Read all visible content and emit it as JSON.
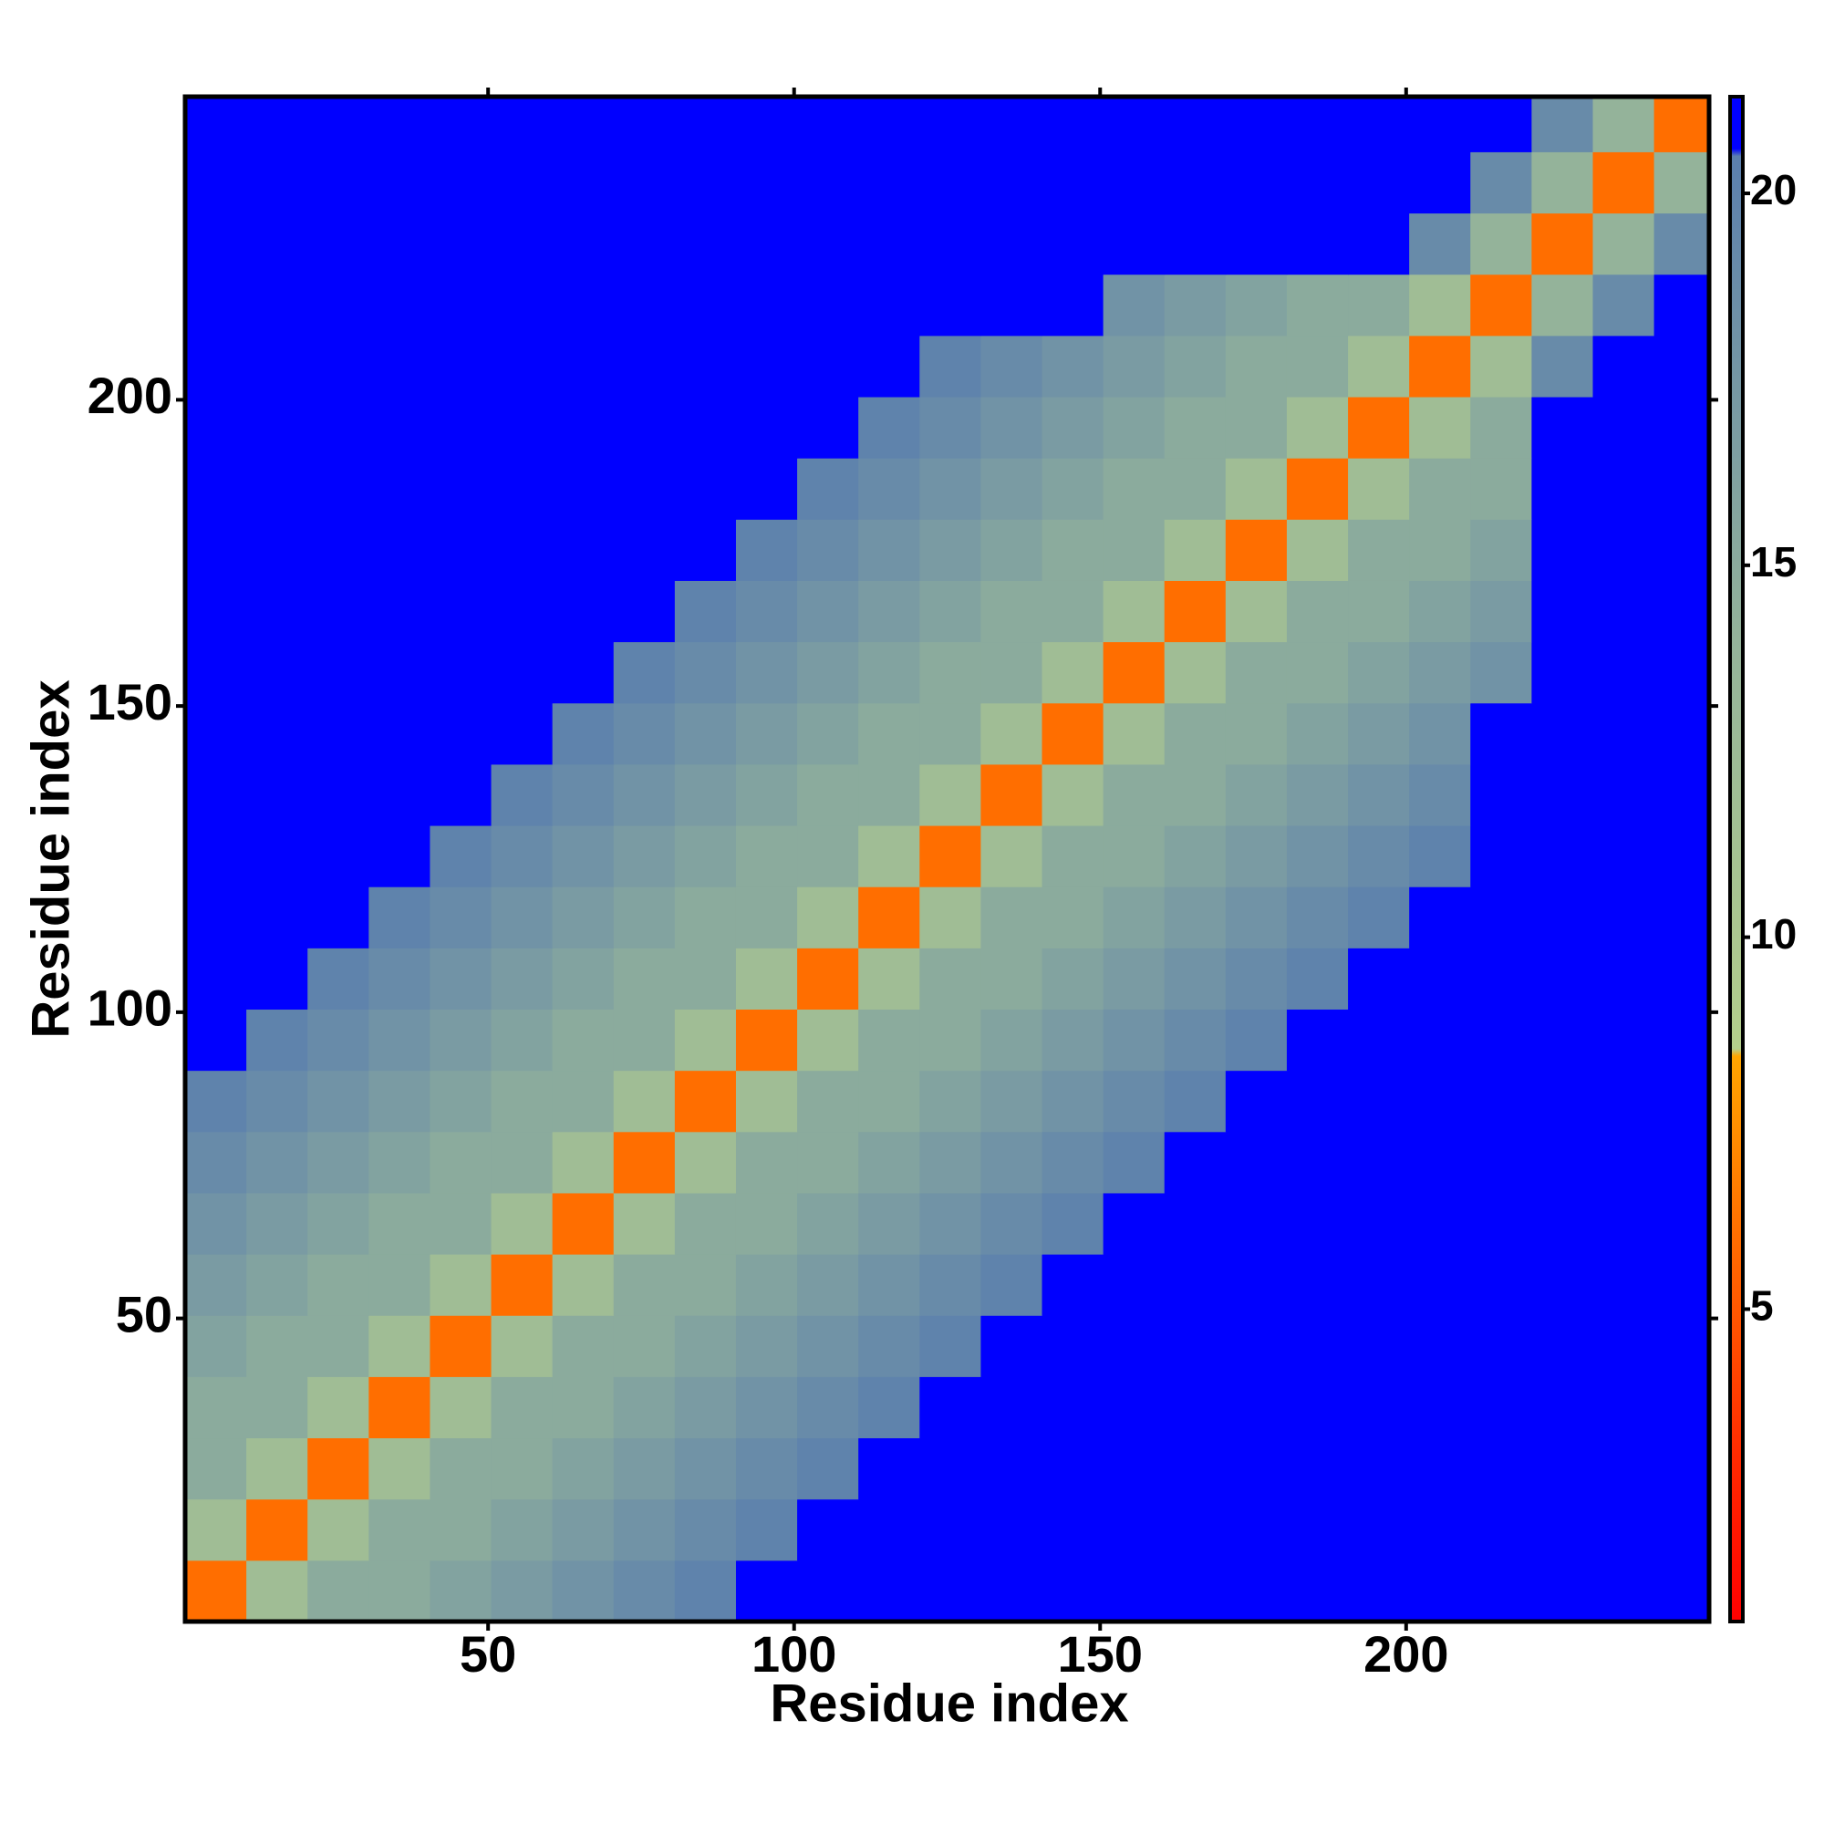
{
  "chart_data": {
    "type": "heatmap",
    "x_label": "Residue index",
    "y_label": "Residue index",
    "xlim": [
      0.5,
      249.5
    ],
    "ylim": [
      0.5,
      249.5
    ],
    "xticks": [
      50,
      100,
      150,
      200
    ],
    "yticks": [
      50,
      100,
      150,
      200
    ],
    "xbins": [
      0.5,
      10.5,
      20.5,
      30.5,
      40.5,
      50.5,
      60.5,
      70.5,
      80.5,
      90.5,
      100.5,
      110.5,
      120.5,
      130.5,
      140.5,
      150.5,
      160.5,
      170.5,
      180.5,
      190.5,
      200.5,
      210.5,
      220.5,
      230.5,
      240.5,
      249.5
    ],
    "ybins": [
      0.5,
      10.5,
      20.5,
      30.5,
      40.5,
      50.5,
      60.5,
      70.5,
      80.5,
      90.5,
      100.5,
      110.5,
      120.5,
      130.5,
      140.5,
      150.5,
      160.5,
      170.5,
      180.5,
      190.5,
      200.5,
      210.5,
      220.5,
      230.5,
      240.5,
      249.5
    ],
    "z": [
      [
        6,
        12,
        15,
        15,
        16,
        17,
        18,
        19,
        20,
        21.3,
        21.3,
        21.3,
        21.3,
        21.3,
        21.3,
        21.3,
        21.3,
        21.3,
        21.3,
        21.3,
        21.3,
        21.3,
        21.3,
        21.3,
        21.3
      ],
      [
        12,
        6,
        12,
        15,
        15,
        16,
        17,
        18,
        19,
        20,
        21.3,
        21.3,
        21.3,
        21.3,
        21.3,
        21.3,
        21.3,
        21.3,
        21.3,
        21.3,
        21.3,
        21.3,
        21.3,
        21.3,
        21.3
      ],
      [
        15,
        12,
        6,
        12,
        15,
        15,
        16,
        17,
        18,
        19,
        20,
        21.3,
        21.3,
        21.3,
        21.3,
        21.3,
        21.3,
        21.3,
        21.3,
        21.3,
        21.3,
        21.3,
        21.3,
        21.3,
        21.3
      ],
      [
        15,
        15,
        12,
        6,
        12,
        15,
        15,
        16,
        17,
        18,
        19,
        20,
        21.3,
        21.3,
        21.3,
        21.3,
        21.3,
        21.3,
        21.3,
        21.3,
        21.3,
        21.3,
        21.3,
        21.3,
        21.3
      ],
      [
        16,
        15,
        15,
        12,
        6,
        12,
        15,
        15,
        16,
        17,
        18,
        19,
        20,
        21.3,
        21.3,
        21.3,
        21.3,
        21.3,
        21.3,
        21.3,
        21.3,
        21.3,
        21.3,
        21.3,
        21.3
      ],
      [
        17,
        16,
        15,
        15,
        12,
        6,
        12,
        15,
        15,
        16,
        17,
        18,
        19,
        20,
        21.3,
        21.3,
        21.3,
        21.3,
        21.3,
        21.3,
        21.3,
        21.3,
        21.3,
        21.3,
        21.3
      ],
      [
        18,
        17,
        16,
        15,
        15,
        12,
        6,
        12,
        15,
        15,
        16,
        17,
        18,
        19,
        20,
        21.3,
        21.3,
        21.3,
        21.3,
        21.3,
        21.3,
        21.3,
        21.3,
        21.3,
        21.3
      ],
      [
        19,
        18,
        17,
        16,
        15,
        15,
        12,
        6,
        12,
        15,
        15,
        16,
        17,
        18,
        19,
        20,
        21.3,
        21.3,
        21.3,
        21.3,
        21.3,
        21.3,
        21.3,
        21.3,
        21.3
      ],
      [
        20,
        19,
        18,
        17,
        16,
        15,
        15,
        12,
        6,
        12,
        15,
        15,
        16,
        17,
        18,
        19,
        20,
        21.3,
        21.3,
        21.3,
        21.3,
        21.3,
        21.3,
        21.3,
        21.3
      ],
      [
        21.3,
        20,
        19,
        18,
        17,
        16,
        15,
        15,
        12,
        6,
        12,
        15,
        15,
        16,
        17,
        18,
        19,
        20,
        21.3,
        21.3,
        21.3,
        21.3,
        21.3,
        21.3,
        21.3
      ],
      [
        21.3,
        21.3,
        20,
        19,
        18,
        17,
        16,
        15,
        15,
        12,
        6,
        12,
        15,
        15,
        16,
        17,
        18,
        19,
        20,
        21.3,
        21.3,
        21.3,
        21.3,
        21.3,
        21.3
      ],
      [
        21.3,
        21.3,
        21.3,
        20,
        19,
        18,
        17,
        16,
        15,
        15,
        12,
        6,
        12,
        15,
        15,
        16,
        17,
        18,
        19,
        20,
        21.3,
        21.3,
        21.3,
        21.3,
        21.3
      ],
      [
        21.3,
        21.3,
        21.3,
        21.3,
        20,
        19,
        18,
        17,
        16,
        15,
        15,
        12,
        6,
        12,
        15,
        15,
        16,
        17,
        18,
        19,
        20,
        21.3,
        21.3,
        21.3,
        21.3
      ],
      [
        21.3,
        21.3,
        21.3,
        21.3,
        21.3,
        20,
        19,
        18,
        17,
        16,
        15,
        15,
        12,
        6,
        12,
        15,
        15,
        16,
        17,
        18,
        19,
        21.3,
        21.3,
        21.3,
        21.3
      ],
      [
        21.3,
        21.3,
        21.3,
        21.3,
        21.3,
        21.3,
        20,
        19,
        18,
        17,
        16,
        15,
        15,
        12,
        6,
        12,
        15,
        15,
        16,
        17,
        18,
        21.3,
        21.3,
        21.3,
        21.3
      ],
      [
        21.3,
        21.3,
        21.3,
        21.3,
        21.3,
        21.3,
        21.3,
        20,
        19,
        18,
        17,
        16,
        15,
        15,
        12,
        6,
        12,
        15,
        15,
        16,
        17,
        18,
        21.3,
        21.3,
        21.3
      ],
      [
        21.3,
        21.3,
        21.3,
        21.3,
        21.3,
        21.3,
        21.3,
        21.3,
        20,
        19,
        18,
        17,
        16,
        15,
        15,
        12,
        6,
        12,
        15,
        15,
        16,
        17,
        21.3,
        21.3,
        21.3
      ],
      [
        21.3,
        21.3,
        21.3,
        21.3,
        21.3,
        21.3,
        21.3,
        21.3,
        21.3,
        20,
        19,
        18,
        17,
        16,
        15,
        15,
        12,
        6,
        12,
        15,
        15,
        16,
        21.3,
        21.3,
        21.3
      ],
      [
        21.3,
        21.3,
        21.3,
        21.3,
        21.3,
        21.3,
        21.3,
        21.3,
        21.3,
        21.3,
        20,
        19,
        18,
        17,
        16,
        15,
        15,
        12,
        6,
        12,
        15,
        15,
        21.3,
        21.3,
        21.3
      ],
      [
        21.3,
        21.3,
        21.3,
        21.3,
        21.3,
        21.3,
        21.3,
        21.3,
        21.3,
        21.3,
        21.3,
        20,
        19,
        18,
        17,
        16,
        15,
        15,
        12,
        6,
        12,
        15,
        21.3,
        21.3,
        21.3
      ],
      [
        21.3,
        21.3,
        21.3,
        21.3,
        21.3,
        21.3,
        21.3,
        21.3,
        21.3,
        21.3,
        21.3,
        21.3,
        20,
        19,
        18,
        17,
        16,
        15,
        15,
        12,
        6,
        12,
        19,
        21.3,
        21.3
      ],
      [
        21.3,
        21.3,
        21.3,
        21.3,
        21.3,
        21.3,
        21.3,
        21.3,
        21.3,
        21.3,
        21.3,
        21.3,
        21.3,
        21.3,
        21.3,
        18,
        17,
        16,
        15,
        15,
        12,
        6,
        14,
        19,
        21.3
      ],
      [
        21.3,
        21.3,
        21.3,
        21.3,
        21.3,
        21.3,
        21.3,
        21.3,
        21.3,
        21.3,
        21.3,
        21.3,
        21.3,
        21.3,
        21.3,
        21.3,
        21.3,
        21.3,
        21.3,
        21.3,
        19,
        14,
        6,
        14,
        19
      ],
      [
        21.3,
        21.3,
        21.3,
        21.3,
        21.3,
        21.3,
        21.3,
        21.3,
        21.3,
        21.3,
        21.3,
        21.3,
        21.3,
        21.3,
        21.3,
        21.3,
        21.3,
        21.3,
        21.3,
        21.3,
        21.3,
        19,
        14,
        6,
        14
      ],
      [
        21.3,
        21.3,
        21.3,
        21.3,
        21.3,
        21.3,
        21.3,
        21.3,
        21.3,
        21.3,
        21.3,
        21.3,
        21.3,
        21.3,
        21.3,
        21.3,
        21.3,
        21.3,
        21.3,
        21.3,
        21.3,
        21.3,
        19,
        14,
        6
      ]
    ],
    "clim": [
      0.8,
      21.3
    ],
    "cticks": [
      5,
      10,
      15,
      20
    ],
    "colorscale": [
      [
        0.8,
        "#ff0000"
      ],
      [
        3,
        "#ff2a00"
      ],
      [
        8.4,
        "#ffa500"
      ],
      [
        8.5,
        "#b4cf8c"
      ],
      [
        14,
        "#94b39a"
      ],
      [
        20.5,
        "#5b7fae"
      ],
      [
        20.6,
        "#0000ff"
      ],
      [
        21.3,
        "#0000ff"
      ]
    ]
  }
}
